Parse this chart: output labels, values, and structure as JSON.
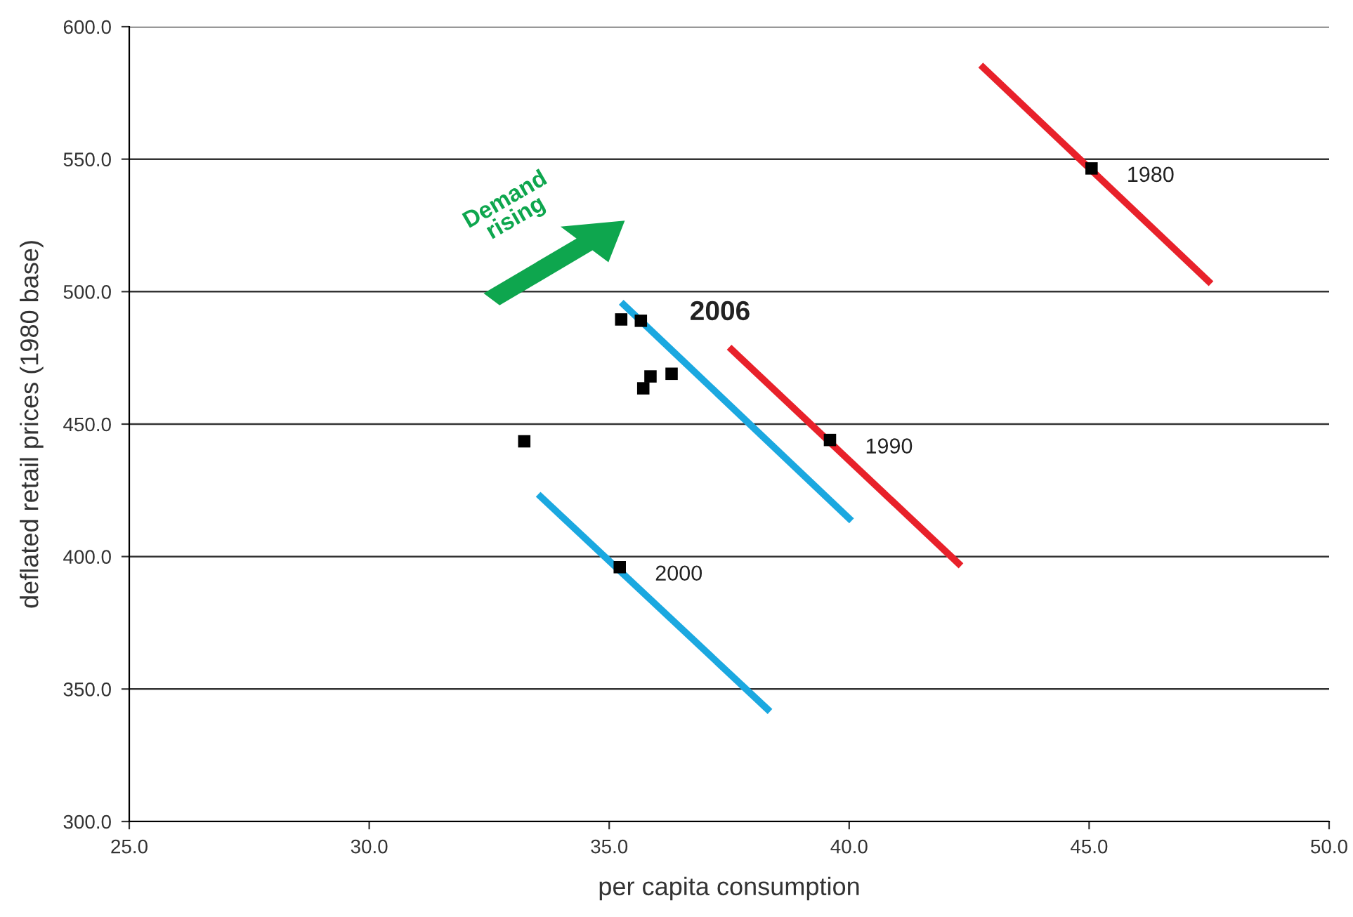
{
  "chart_data": {
    "type": "scatter",
    "xlabel": "per capita consumption",
    "ylabel": "deflated retail prices (1980 base)",
    "xlim": [
      25,
      50
    ],
    "ylim": [
      300,
      600
    ],
    "xticks": [
      {
        "value": 25,
        "label": "25.0"
      },
      {
        "value": 30,
        "label": "30.0"
      },
      {
        "value": 35,
        "label": "35.0"
      },
      {
        "value": 40,
        "label": "40.0"
      },
      {
        "value": 45,
        "label": "45.0"
      },
      {
        "value": 50,
        "label": "50.0"
      }
    ],
    "yticks": [
      {
        "value": 300,
        "label": "300.0"
      },
      {
        "value": 350,
        "label": "350.0"
      },
      {
        "value": 400,
        "label": "400.0"
      },
      {
        "value": 450,
        "label": "450.0"
      },
      {
        "value": 500,
        "label": "500.0"
      },
      {
        "value": 550,
        "label": "550.0"
      },
      {
        "value": 600,
        "label": "600.0"
      }
    ],
    "grid": "y",
    "series": [
      {
        "color": "#000000",
        "marker": "square",
        "x": [
          45.05,
          39.6,
          35.22,
          33.23,
          35.25,
          35.66,
          35.86,
          35.71,
          36.3
        ],
        "values": [
          546.5,
          444,
          396,
          443.5,
          489.5,
          489,
          468,
          463.5,
          469
        ]
      },
      {
        "type": "line",
        "color": "#e8212a",
        "x": [
          42.74,
          47.54
        ],
        "values": [
          585.5,
          503
        ]
      },
      {
        "type": "line",
        "color": "#e8212a",
        "x": [
          37.5,
          42.33
        ],
        "values": [
          479,
          396.5
        ]
      },
      {
        "type": "line",
        "color": "#1ba8e0",
        "x": [
          35.25,
          40.05
        ],
        "values": [
          496,
          413.5
        ]
      },
      {
        "type": "line",
        "color": "#1ba8e0",
        "x": [
          33.52,
          38.35
        ],
        "values": [
          423.5,
          341.5
        ]
      }
    ],
    "annotations": [
      {
        "text": "1980",
        "x": 45.05,
        "y": 546.5
      },
      {
        "text": "1990",
        "x": 39.6,
        "y": 444
      },
      {
        "text": "2000",
        "x": 35.22,
        "y": 396
      },
      {
        "text": "2006",
        "x": 35.66,
        "y": 489
      },
      "Demand rising"
    ]
  }
}
